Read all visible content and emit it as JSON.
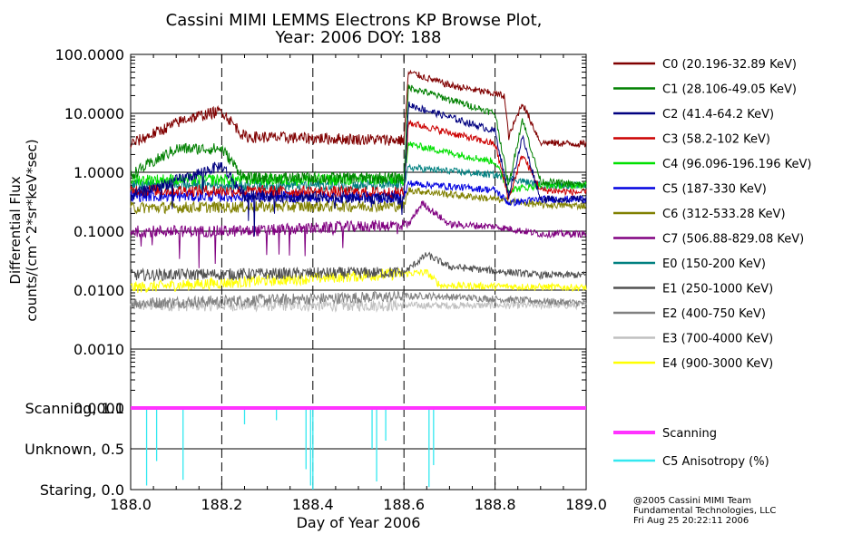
{
  "chart_data": [
    {
      "type": "line",
      "title": "Cassini MIMI LEMMS Electrons KP Browse Plot,",
      "subtitle": "Year: 2006 DOY: 188",
      "ylabel_line1": "Differential Flux",
      "ylabel_line2": "counts/(cm^2*sr*keV*sec)",
      "yscale": "log",
      "ylim": [
        0.0001,
        100
      ],
      "yticks": [
        100,
        10,
        1,
        0.1,
        0.01,
        0.001,
        0.0001
      ],
      "ytick_labels": [
        "100.0000",
        "10.0000",
        "1.0000",
        "0.1000",
        "0.0100",
        "0.0010",
        "0.0001"
      ],
      "xlim": [
        188.0,
        189.0
      ],
      "vertical_dashed_lines_at": [
        188.2,
        188.4,
        188.6,
        188.8
      ],
      "legend_position": "right",
      "series": [
        {
          "name": "C0 (20.196-32.89 KeV)",
          "color": "#800000",
          "before": 3.5,
          "after": 35,
          "after_shape": "falling-with-dip-at-188.83",
          "points": [
            [
              188.0,
              3
            ],
            [
              188.12,
              8
            ],
            [
              188.2,
              11
            ],
            [
              188.25,
              4
            ],
            [
              188.6,
              3.5
            ],
            [
              188.61,
              50
            ],
            [
              188.7,
              30
            ],
            [
              188.82,
              20
            ],
            [
              188.83,
              4
            ],
            [
              188.86,
              15
            ],
            [
              188.9,
              3.2
            ],
            [
              189.0,
              3
            ]
          ]
        },
        {
          "name": "C1 (28.106-49.05 KeV)",
          "color": "#008000",
          "before": 0.8,
          "after": 18,
          "points": [
            [
              188.0,
              0.9
            ],
            [
              188.1,
              2.5
            ],
            [
              188.2,
              2.5
            ],
            [
              188.25,
              0.8
            ],
            [
              188.6,
              0.8
            ],
            [
              188.61,
              28
            ],
            [
              188.8,
              10
            ],
            [
              188.83,
              0.6
            ],
            [
              188.86,
              8
            ],
            [
              188.9,
              0.7
            ],
            [
              189.0,
              0.6
            ]
          ]
        },
        {
          "name": "C2 (41.4-64.2 KeV)",
          "color": "#000080",
          "before": 0.35,
          "after": 9,
          "points": [
            [
              188.0,
              0.4
            ],
            [
              188.2,
              1.3
            ],
            [
              188.25,
              0.4
            ],
            [
              188.6,
              0.35
            ],
            [
              188.61,
              14
            ],
            [
              188.8,
              5
            ],
            [
              188.83,
              0.4
            ],
            [
              188.86,
              4
            ],
            [
              188.9,
              0.35
            ],
            [
              189.0,
              0.35
            ]
          ]
        },
        {
          "name": "C3 (58.2-102 KeV)",
          "color": "#cc0000",
          "before": 0.5,
          "after": 5,
          "points": [
            [
              188.0,
              0.5
            ],
            [
              188.6,
              0.45
            ],
            [
              188.61,
              7
            ],
            [
              188.8,
              3
            ],
            [
              188.83,
              0.35
            ],
            [
              188.86,
              2
            ],
            [
              188.9,
              0.5
            ],
            [
              189.0,
              0.45
            ]
          ]
        },
        {
          "name": "C4 (96.096-196.196 KeV)",
          "color": "#00e000",
          "before": 0.7,
          "after": 2.3,
          "points": [
            [
              188.0,
              0.75
            ],
            [
              188.6,
              0.75
            ],
            [
              188.61,
              3
            ],
            [
              188.8,
              1.5
            ],
            [
              188.83,
              0.5
            ],
            [
              188.9,
              0.6
            ],
            [
              189.0,
              0.6
            ]
          ]
        },
        {
          "name": "C5 (187-330 KeV)",
          "color": "#0000e0",
          "before": 0.38,
          "after": 0.6,
          "points": [
            [
              188.0,
              0.4
            ],
            [
              188.6,
              0.38
            ],
            [
              188.61,
              0.65
            ],
            [
              188.8,
              0.5
            ],
            [
              188.83,
              0.3
            ],
            [
              188.9,
              0.35
            ],
            [
              189.0,
              0.35
            ]
          ]
        },
        {
          "name": "C6 (312-533.28 KeV)",
          "color": "#808000",
          "before": 0.25,
          "after": 0.4,
          "points": [
            [
              188.0,
              0.25
            ],
            [
              188.6,
              0.27
            ],
            [
              188.61,
              0.5
            ],
            [
              188.8,
              0.35
            ],
            [
              188.9,
              0.28
            ],
            [
              189.0,
              0.27
            ]
          ]
        },
        {
          "name": "C7 (506.88-829.08 KeV)",
          "color": "#800080",
          "before": 0.1,
          "after": 0.15,
          "points": [
            [
              188.0,
              0.1
            ],
            [
              188.25,
              0.1
            ],
            [
              188.61,
              0.13
            ],
            [
              188.64,
              0.3
            ],
            [
              188.7,
              0.13
            ],
            [
              188.8,
              0.12
            ],
            [
              188.9,
              0.09
            ],
            [
              189.0,
              0.09
            ]
          ]
        },
        {
          "name": "E0 (150-200 KeV)",
          "color": "#008080",
          "before": 0.6,
          "after": 1.1,
          "points": [
            [
              188.0,
              0.6
            ],
            [
              188.6,
              0.6
            ],
            [
              188.61,
              1.2
            ],
            [
              188.8,
              0.9
            ],
            [
              188.9,
              0.6
            ],
            [
              189.0,
              0.6
            ]
          ]
        },
        {
          "name": "E1 (250-1000 KeV)",
          "color": "#505050",
          "before": 0.018,
          "after": 0.025,
          "points": [
            [
              188.0,
              0.018
            ],
            [
              188.6,
              0.02
            ],
            [
              188.65,
              0.04
            ],
            [
              188.7,
              0.025
            ],
            [
              188.9,
              0.018
            ],
            [
              189.0,
              0.018
            ]
          ]
        },
        {
          "name": "E2 (400-750 KeV)",
          "color": "#808080",
          "before": 0.006,
          "after": 0.007,
          "points": [
            [
              188.0,
              0.006
            ],
            [
              188.65,
              0.008
            ],
            [
              189.0,
              0.006
            ]
          ]
        },
        {
          "name": "E3 (700-4000 KeV)",
          "color": "#c0c0c0",
          "before": 0.0055,
          "after": 0.006,
          "points": [
            [
              188.0,
              0.0055
            ],
            [
              189.0,
              0.0055
            ]
          ]
        },
        {
          "name": "E4 (900-3000 KeV)",
          "color": "#ffff00",
          "before": 0.011,
          "after": 0.012,
          "points": [
            [
              188.0,
              0.011
            ],
            [
              188.65,
              0.02
            ],
            [
              188.68,
              0.012
            ],
            [
              189.0,
              0.011
            ]
          ]
        }
      ]
    },
    {
      "type": "line",
      "xlabel": "Day of Year 2006",
      "xticks": [
        188.0,
        188.2,
        188.4,
        188.6,
        188.8,
        189.0
      ],
      "xtick_labels": [
        "188.0",
        "188.2",
        "188.4",
        "188.6",
        "188.8",
        "189.0"
      ],
      "xlim": [
        188.0,
        189.0
      ],
      "ylim": [
        0,
        1
      ],
      "yticks": [
        1.0,
        0.5,
        0.0
      ],
      "ytick_labels": [
        "Scanning, 1.0",
        "Unknown, 0.5",
        "Staring, 0.0"
      ],
      "legend_position": "right",
      "series": [
        {
          "name": "Scanning",
          "color": "#ff33ff",
          "values_description": "constant",
          "points": [
            [
              188.0,
              1.0
            ],
            [
              189.0,
              1.0
            ]
          ]
        },
        {
          "name": "C5 Anisotropy (%)",
          "color": "#33e8f0",
          "spikes_x": [
            188.035,
            188.057,
            188.115,
            188.25,
            188.32,
            188.385,
            188.395,
            188.4,
            188.53,
            188.54,
            188.56,
            188.655,
            188.665
          ],
          "spike_min": [
            0.05,
            0.35,
            0.12,
            0.8,
            0.85,
            0.25,
            0.05,
            0.0,
            0.5,
            0.1,
            0.6,
            0.03,
            0.3
          ]
        }
      ]
    }
  ],
  "credits": {
    "line1": "@2005 Cassini MIMI Team",
    "line2": "Fundamental Technologies, LLC",
    "line3": "Fri Aug 25 20:22:11 2006"
  }
}
